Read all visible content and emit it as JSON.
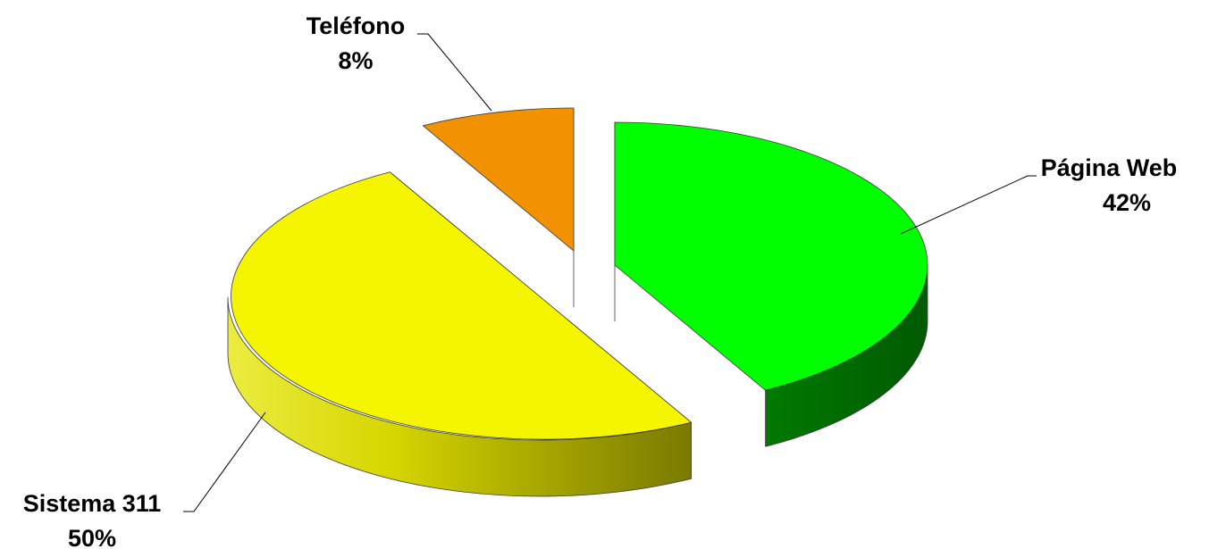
{
  "chart_data": {
    "type": "pie",
    "style": "3d-exploded",
    "title": "",
    "slices": [
      {
        "category": "Página Web",
        "percent_label": "42%",
        "value": 42,
        "top_color": "#00FF00",
        "side_color": "#006600"
      },
      {
        "category": "Sistema 311",
        "percent_label": "50%",
        "value": 50,
        "top_color": "#F5F500",
        "side_color": "#A8A800"
      },
      {
        "category": "Teléfono",
        "percent_label": "8%",
        "value": 8,
        "top_color": "#F39200",
        "side_color": "#6B3A00"
      }
    ],
    "legend": "none",
    "data_labels": "outside with leader lines"
  }
}
